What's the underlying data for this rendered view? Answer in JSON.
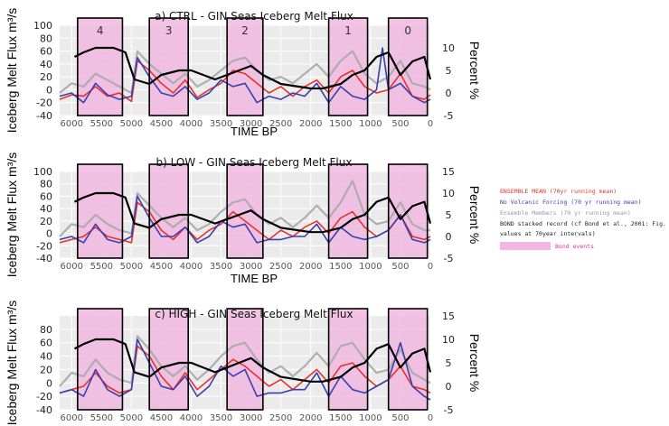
{
  "chart_data": [
    {
      "type": "line",
      "title": "a) CTRL  - GIN Seas  Iceberg  Melt Flux",
      "ylabel": "Iceberg Melt Flux m³/s",
      "y2label": "Percent %",
      "xlabel": "TIME BP",
      "xlim": [
        6200,
        0
      ],
      "ylim": [
        -40,
        100
      ],
      "y2lim": [
        -5,
        15
      ],
      "xticks": [
        6000,
        5500,
        5000,
        4500,
        4000,
        3500,
        3000,
        2500,
        2000,
        1500,
        1000,
        500,
        0
      ],
      "yticks": [
        -40,
        -20,
        0,
        20,
        40,
        60,
        80,
        100
      ],
      "y2ticks": [
        -5,
        0,
        5,
        10
      ],
      "bond_events": [
        {
          "label": "4",
          "start": 5900,
          "end": 5150
        },
        {
          "label": "3",
          "start": 4700,
          "end": 4050
        },
        {
          "label": "2",
          "start": 3400,
          "end": 2800
        },
        {
          "label": "1",
          "start": 1700,
          "end": 1050
        },
        {
          "label": "0",
          "start": 700,
          "end": 50
        }
      ],
      "series": [
        {
          "role": "bond",
          "x": [
            5950,
            5800,
            5600,
            5300,
            5100,
            4950,
            4700,
            4500,
            4200,
            4000,
            3600,
            3400,
            3200,
            3000,
            2800,
            2500,
            2000,
            1800,
            1500,
            1300,
            1100,
            900,
            700,
            500,
            300,
            100,
            0
          ],
          "values": [
            8,
            9,
            10,
            10,
            9,
            3,
            2,
            4,
            5,
            5,
            3,
            4,
            5,
            6,
            4,
            2,
            1,
            1,
            2,
            4,
            5,
            8,
            9,
            4,
            7,
            8,
            3
          ]
        },
        {
          "role": "ensemble",
          "x": [
            6200,
            6000,
            5800,
            5600,
            5400,
            5200,
            5000,
            4900,
            4700,
            4500,
            4300,
            4100,
            3900,
            3700,
            3500,
            3300,
            3100,
            2900,
            2700,
            2500,
            2300,
            2100,
            1900,
            1700,
            1500,
            1300,
            1100,
            900,
            700,
            500,
            300,
            100,
            0
          ],
          "values": [
            -15,
            -8,
            -10,
            5,
            -10,
            -5,
            -18,
            45,
            30,
            10,
            -5,
            15,
            -12,
            0,
            10,
            30,
            25,
            10,
            -5,
            5,
            -10,
            5,
            15,
            -5,
            20,
            30,
            5,
            -5,
            0,
            25,
            -10,
            -15,
            -8
          ]
        },
        {
          "role": "novolcanic",
          "x": [
            6200,
            6000,
            5800,
            5600,
            5400,
            5200,
            5000,
            4900,
            4700,
            4500,
            4300,
            4100,
            3900,
            3700,
            3500,
            3300,
            3100,
            2900,
            2700,
            2500,
            2300,
            2100,
            1900,
            1700,
            1500,
            1300,
            1100,
            900,
            800,
            700,
            500,
            300,
            100,
            0
          ],
          "values": [
            -10,
            -5,
            -20,
            10,
            -8,
            -15,
            -10,
            50,
            20,
            -5,
            -10,
            5,
            -15,
            -5,
            15,
            5,
            10,
            -20,
            -10,
            -15,
            -5,
            -10,
            10,
            -20,
            5,
            -10,
            -15,
            0,
            65,
            0,
            10,
            -10,
            -20,
            -15
          ]
        },
        {
          "role": "members",
          "x": [
            6200,
            6000,
            5800,
            5600,
            5400,
            5200,
            5000,
            4900,
            4700,
            4500,
            4300,
            4100,
            3900,
            3700,
            3500,
            3300,
            3100,
            2900,
            2700,
            2500,
            2300,
            2100,
            1900,
            1700,
            1500,
            1300,
            1100,
            900,
            700,
            500,
            300,
            100,
            0
          ],
          "values": [
            -5,
            10,
            5,
            25,
            15,
            5,
            -5,
            60,
            40,
            25,
            10,
            25,
            5,
            15,
            30,
            45,
            50,
            30,
            15,
            20,
            10,
            25,
            40,
            20,
            45,
            60,
            25,
            10,
            20,
            45,
            10,
            5,
            0
          ]
        }
      ]
    },
    {
      "type": "line",
      "title": "b) LOW - GIN Seas  Iceberg  Melt Flux",
      "ylabel": "Iceberg Melt Flux m³/s",
      "y2label": "Percent %",
      "xlabel": "TIME BP",
      "xlim": [
        6200,
        0
      ],
      "ylim": [
        -40,
        100
      ],
      "y2lim": [
        -5,
        15
      ],
      "xticks": [
        6000,
        5500,
        5000,
        4500,
        4000,
        3500,
        3000,
        2500,
        2000,
        1500,
        1000,
        500,
        0
      ],
      "yticks": [
        -40,
        -20,
        0,
        20,
        40,
        60,
        80,
        100
      ],
      "y2ticks": [
        -5,
        0,
        5,
        10,
        15
      ],
      "bond_events": [
        {
          "label": "",
          "start": 5900,
          "end": 5150
        },
        {
          "label": "",
          "start": 4700,
          "end": 4050
        },
        {
          "label": "",
          "start": 3400,
          "end": 2800
        },
        {
          "label": "",
          "start": 1700,
          "end": 1050
        },
        {
          "label": "",
          "start": 700,
          "end": 50
        }
      ],
      "series": [
        {
          "role": "bond",
          "x": [
            5950,
            5800,
            5600,
            5300,
            5100,
            4950,
            4700,
            4500,
            4200,
            4000,
            3600,
            3400,
            3200,
            3000,
            2800,
            2500,
            2000,
            1800,
            1500,
            1300,
            1100,
            900,
            700,
            500,
            300,
            100,
            0
          ],
          "values": [
            8,
            9,
            10,
            10,
            9,
            3,
            2,
            4,
            5,
            5,
            3,
            4,
            5,
            6,
            4,
            2,
            1,
            1,
            2,
            4,
            5,
            8,
            9,
            4,
            7,
            8,
            3
          ]
        },
        {
          "role": "ensemble",
          "x": [
            6200,
            6000,
            5800,
            5600,
            5400,
            5200,
            5000,
            4900,
            4700,
            4500,
            4300,
            4100,
            3900,
            3700,
            3500,
            3300,
            3100,
            2900,
            2700,
            2500,
            2300,
            2100,
            1900,
            1700,
            1500,
            1300,
            1100,
            900,
            700,
            500,
            300,
            100,
            0
          ],
          "values": [
            -15,
            -10,
            -5,
            10,
            -5,
            -10,
            -15,
            50,
            35,
            5,
            -10,
            10,
            -10,
            5,
            15,
            35,
            20,
            5,
            -10,
            5,
            -5,
            10,
            20,
            0,
            25,
            35,
            10,
            -5,
            5,
            30,
            -5,
            -10,
            -5
          ]
        },
        {
          "role": "novolcanic",
          "x": [
            6200,
            6000,
            5800,
            5600,
            5400,
            5200,
            5000,
            4900,
            4700,
            4500,
            4300,
            4100,
            3900,
            3700,
            3500,
            3300,
            3100,
            2900,
            2700,
            2500,
            2300,
            2100,
            1900,
            1700,
            1500,
            1300,
            1100,
            900,
            700,
            500,
            300,
            100,
            0
          ],
          "values": [
            -10,
            -5,
            -15,
            15,
            -10,
            -15,
            -5,
            60,
            25,
            -5,
            -5,
            10,
            -15,
            -5,
            20,
            10,
            15,
            -15,
            -10,
            -10,
            -5,
            -5,
            15,
            -15,
            10,
            -5,
            -10,
            -5,
            5,
            30,
            -10,
            -15,
            -10
          ]
        },
        {
          "role": "members",
          "x": [
            6200,
            6000,
            5800,
            5600,
            5400,
            5200,
            5000,
            4900,
            4700,
            4500,
            4300,
            4100,
            3900,
            3700,
            3500,
            3300,
            3100,
            2900,
            2700,
            2500,
            2300,
            2100,
            1900,
            1700,
            1500,
            1300,
            1100,
            900,
            700,
            500,
            300,
            100,
            0
          ],
          "values": [
            -5,
            15,
            10,
            30,
            15,
            5,
            0,
            65,
            45,
            25,
            10,
            25,
            5,
            15,
            35,
            50,
            55,
            30,
            15,
            25,
            10,
            25,
            45,
            25,
            50,
            85,
            30,
            15,
            20,
            50,
            15,
            5,
            5
          ]
        }
      ]
    },
    {
      "type": "line",
      "title": "c) HIGH - GIN Seas  Iceberg  Melt Flux",
      "ylabel": "Iceberg Melt Flux m³/s",
      "y2label": "Percent %",
      "xlabel": "",
      "xlim": [
        6200,
        0
      ],
      "ylim": [
        -40,
        100
      ],
      "y2lim": [
        -5,
        15
      ],
      "xticks": [
        6000,
        5500,
        5000,
        4500,
        4000,
        3500,
        3000,
        2500,
        2000,
        1500,
        1000,
        500,
        0
      ],
      "yticks": [
        -40,
        -20,
        0,
        20,
        40,
        60,
        80
      ],
      "y2ticks": [
        -5,
        0,
        5,
        10,
        15
      ],
      "bond_events": [
        {
          "label": "",
          "start": 5900,
          "end": 5150
        },
        {
          "label": "",
          "start": 4700,
          "end": 4050
        },
        {
          "label": "",
          "start": 3400,
          "end": 2800
        },
        {
          "label": "",
          "start": 1700,
          "end": 1050
        },
        {
          "label": "",
          "start": 700,
          "end": 50
        }
      ],
      "series": [
        {
          "role": "bond",
          "x": [
            5950,
            5800,
            5600,
            5300,
            5100,
            4950,
            4700,
            4500,
            4200,
            4000,
            3600,
            3400,
            3200,
            3000,
            2800,
            2500,
            2000,
            1800,
            1500,
            1300,
            1100,
            900,
            700,
            500,
            300,
            100,
            0
          ],
          "values": [
            8,
            9,
            10,
            10,
            9,
            3,
            2,
            4,
            5,
            5,
            3,
            4,
            5,
            6,
            4,
            2,
            1,
            1,
            2,
            4,
            5,
            8,
            9,
            4,
            7,
            8,
            3
          ]
        },
        {
          "role": "ensemble",
          "x": [
            6200,
            6000,
            5800,
            5600,
            5400,
            5200,
            5000,
            4900,
            4700,
            4500,
            4300,
            4100,
            3900,
            3700,
            3500,
            3300,
            3100,
            2900,
            2700,
            2500,
            2300,
            2100,
            1900,
            1700,
            1500,
            1300,
            1100,
            900,
            700,
            500,
            300,
            100,
            0
          ],
          "values": [
            -15,
            -10,
            -5,
            15,
            -5,
            -15,
            -10,
            55,
            40,
            10,
            -10,
            15,
            -10,
            5,
            20,
            35,
            25,
            10,
            -5,
            5,
            -10,
            5,
            20,
            0,
            25,
            30,
            10,
            -5,
            5,
            25,
            -5,
            -10,
            -15
          ]
        },
        {
          "role": "novolcanic",
          "x": [
            6200,
            6000,
            5800,
            5600,
            5400,
            5200,
            5000,
            4900,
            4700,
            4500,
            4300,
            4100,
            3900,
            3700,
            3500,
            3300,
            3100,
            2900,
            2700,
            2500,
            2300,
            2100,
            1900,
            1700,
            1500,
            1300,
            1100,
            900,
            700,
            500,
            300,
            100,
            0
          ],
          "values": [
            -15,
            -10,
            -20,
            20,
            -10,
            -20,
            -10,
            65,
            30,
            -5,
            -10,
            10,
            -20,
            -5,
            25,
            10,
            20,
            -20,
            -15,
            -15,
            -10,
            -10,
            15,
            -20,
            10,
            -10,
            -15,
            -5,
            5,
            60,
            -5,
            -20,
            -25
          ]
        },
        {
          "role": "members",
          "x": [
            6200,
            6000,
            5800,
            5600,
            5400,
            5200,
            5000,
            4900,
            4700,
            4500,
            4300,
            4100,
            3900,
            3700,
            3500,
            3300,
            3100,
            2900,
            2700,
            2500,
            2300,
            2100,
            1900,
            1700,
            1500,
            1300,
            1100,
            900,
            700,
            500,
            300,
            100,
            0
          ],
          "values": [
            -5,
            15,
            10,
            35,
            15,
            5,
            0,
            70,
            50,
            25,
            10,
            25,
            5,
            20,
            40,
            55,
            60,
            35,
            15,
            25,
            10,
            25,
            45,
            25,
            55,
            60,
            35,
            15,
            20,
            50,
            15,
            5,
            0
          ]
        }
      ]
    }
  ],
  "legend": {
    "ensemble": "ENSEMBLE  MEAN  (70yr running  mean)",
    "novolcanic": "No Volcanic  Forcing  (70 yr running  mean)",
    "members": "Ensemble  Members  (70 yr running  mean)",
    "bond_1": "BOND stacked  record  (cf Bond  et al., 2001: Fig. 1g,",
    "bond_2": "values  at 70year  intervals)",
    "events": "Bond events"
  },
  "colors": {
    "ensemble": "#e8322a",
    "novolcanic": "#3a3fb0",
    "members": "#a8a8a8",
    "bond": "#000000",
    "events_fill": "#f0b8e0",
    "panel_bg": "#ebebeb",
    "grid": "#ffffff"
  }
}
